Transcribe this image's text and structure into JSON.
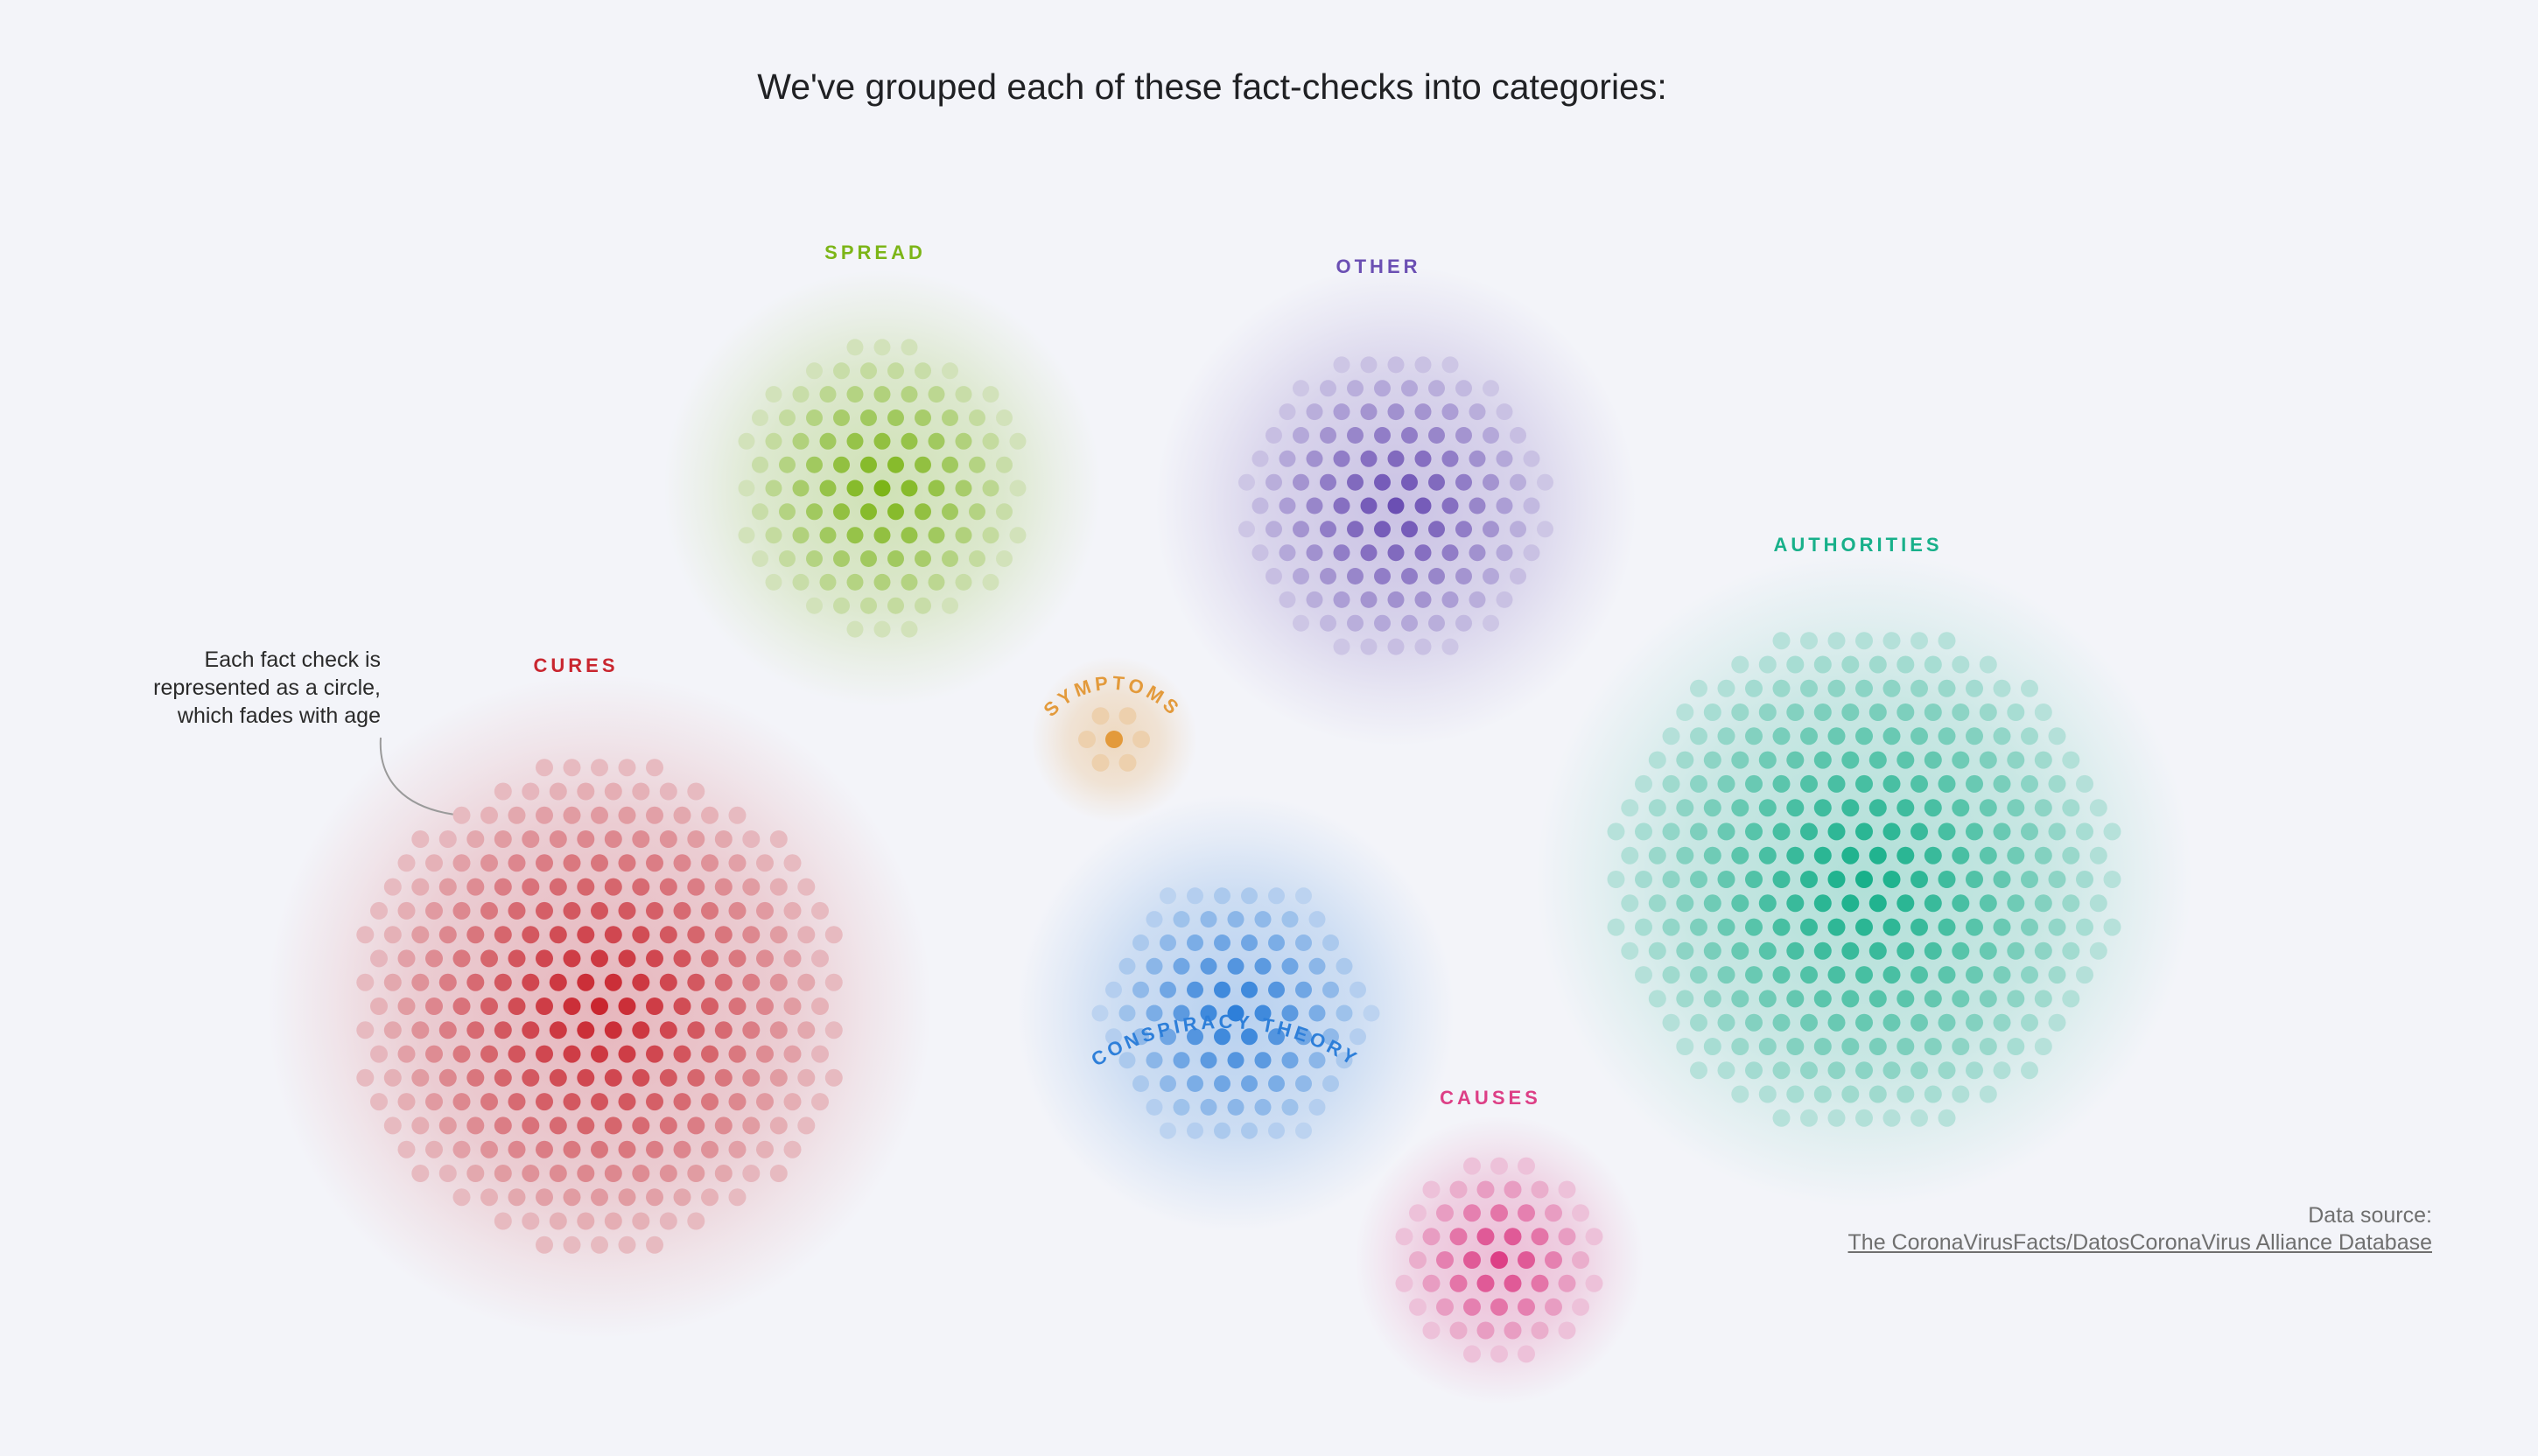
{
  "title": "We've grouped each of these fact-checks into categories:",
  "annotation": "Each fact check is represented as a circle, which fades with age",
  "source": {
    "label": "Data source:",
    "link_text": "The CoronaVirusFacts/DatosCoronaVirus Alliance Database"
  },
  "categories": [
    {
      "key": "spread",
      "label": "SPREAD",
      "color": "#7cb518"
    },
    {
      "key": "other",
      "label": "OTHER",
      "color": "#6b4fb3"
    },
    {
      "key": "symptoms",
      "label": "SYMPTOMS",
      "color": "#e39a3b"
    },
    {
      "key": "cures",
      "label": "CURES",
      "color": "#c9262f"
    },
    {
      "key": "conspiracy",
      "label": "CONSPIRACY THEORY",
      "color": "#2e7fd9"
    },
    {
      "key": "authorities",
      "label": "AUTHORITIES",
      "color": "#18b08a"
    },
    {
      "key": "causes",
      "label": "CAUSES",
      "color": "#dd3f86"
    }
  ]
}
